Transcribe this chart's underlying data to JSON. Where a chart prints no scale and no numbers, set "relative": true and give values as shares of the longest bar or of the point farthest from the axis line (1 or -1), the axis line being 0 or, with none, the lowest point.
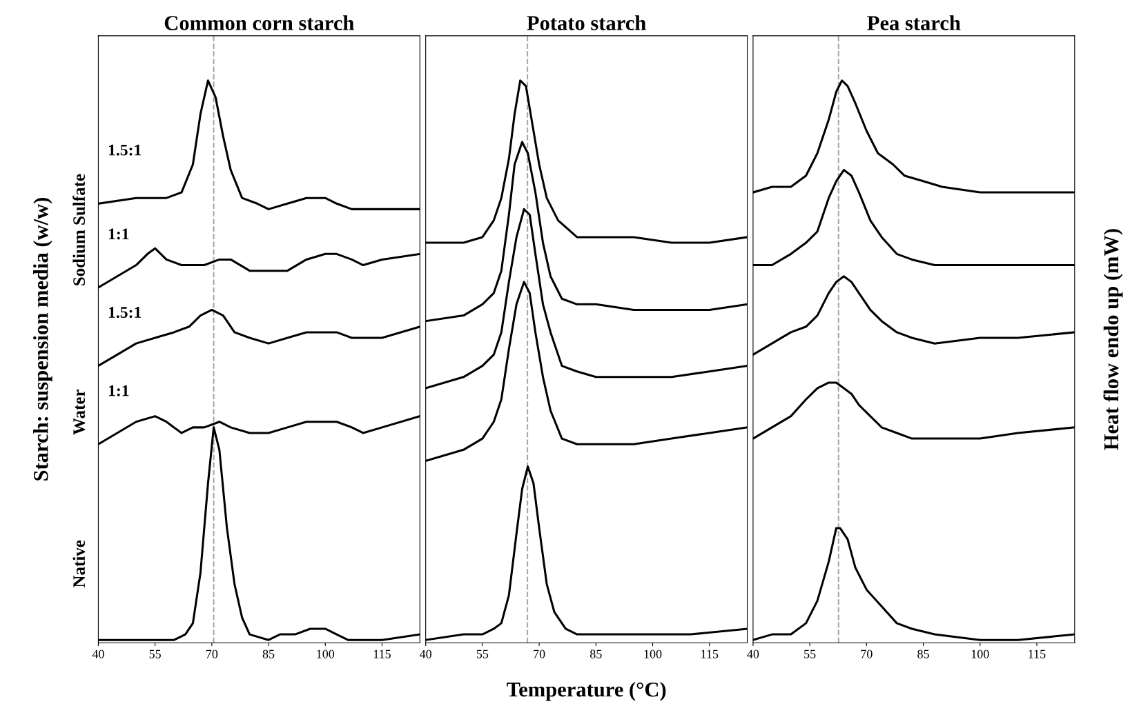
{
  "chart_data": [
    {
      "type": "line",
      "title": "Common corn starch",
      "ylabel": "Starch: suspension media (w/w)",
      "relative": true,
      "xlim": [
        40,
        125
      ],
      "xticks": [
        40,
        55,
        70,
        85,
        100,
        115
      ],
      "tick_labels": "x",
      "grid": false,
      "legend": false,
      "marker": "none",
      "line_style": "solid",
      "annotations": [
        "Sodium Sulfate",
        "Water",
        "Native"
      ],
      "ref_lines": [
        {
          "axis": "x",
          "value": 70.5,
          "color": "#a6a6a6",
          "line_style": "dashed"
        }
      ],
      "series": [
        {
          "name": "1.5:1",
          "color": "#000000",
          "x": [
            40,
            50,
            58,
            62,
            65,
            67,
            69,
            71,
            73,
            75,
            78,
            82,
            85,
            90,
            95,
            100,
            103,
            107,
            110,
            115,
            125
          ],
          "values": [
            0.78,
            0.79,
            0.79,
            0.8,
            0.85,
            0.94,
            1,
            0.97,
            0.9,
            0.84,
            0.79,
            0.78,
            0.77,
            0.78,
            0.79,
            0.79,
            0.78,
            0.77,
            0.77,
            0.77,
            0.77
          ]
        },
        {
          "name": "1:1",
          "color": "#000000",
          "x": [
            40,
            45,
            50,
            53,
            55,
            58,
            62,
            65,
            68,
            72,
            75,
            80,
            85,
            90,
            95,
            100,
            103,
            107,
            110,
            115,
            125
          ],
          "values": [
            0.63,
            0.65,
            0.67,
            0.69,
            0.7,
            0.68,
            0.67,
            0.67,
            0.67,
            0.68,
            0.68,
            0.66,
            0.66,
            0.66,
            0.68,
            0.69,
            0.69,
            0.68,
            0.67,
            0.68,
            0.69
          ]
        },
        {
          "name": "1.5:1",
          "color": "#000000",
          "x": [
            40,
            45,
            50,
            55,
            60,
            64,
            67,
            70,
            73,
            76,
            80,
            85,
            90,
            95,
            100,
            103,
            107,
            110,
            115,
            125
          ],
          "values": [
            0.49,
            0.51,
            0.53,
            0.54,
            0.55,
            0.56,
            0.58,
            0.59,
            0.58,
            0.55,
            0.54,
            0.53,
            0.54,
            0.55,
            0.55,
            0.55,
            0.54,
            0.54,
            0.54,
            0.56
          ]
        },
        {
          "name": "1:1",
          "color": "#000000",
          "x": [
            40,
            45,
            50,
            55,
            58,
            62,
            65,
            68,
            72,
            75,
            80,
            85,
            90,
            95,
            100,
            103,
            107,
            110,
            115,
            125
          ],
          "values": [
            0.35,
            0.37,
            0.39,
            0.4,
            0.39,
            0.37,
            0.38,
            0.38,
            0.39,
            0.38,
            0.37,
            0.37,
            0.38,
            0.39,
            0.39,
            0.39,
            0.38,
            0.37,
            0.38,
            0.4
          ]
        },
        {
          "color": "#000000",
          "x": [
            40,
            45,
            50,
            55,
            60,
            63,
            65,
            67,
            69,
            70.5,
            72,
            74,
            76,
            78,
            80,
            85,
            88,
            92,
            96,
            100,
            103,
            106,
            110,
            115,
            125
          ],
          "values": [
            0,
            0,
            0,
            0,
            0,
            0.01,
            0.03,
            0.12,
            0.28,
            0.38,
            0.34,
            0.2,
            0.1,
            0.04,
            0.01,
            0,
            0.01,
            0.01,
            0.02,
            0.02,
            0.01,
            0,
            0,
            0,
            0.01
          ]
        }
      ]
    },
    {
      "type": "line",
      "title": "Potato starch",
      "xlabel": "Temperature (°C)",
      "relative": true,
      "xlim": [
        40,
        125
      ],
      "xticks": [
        40,
        55,
        70,
        85,
        100,
        115
      ],
      "tick_labels": "x",
      "grid": false,
      "legend": false,
      "marker": "none",
      "line_style": "solid",
      "ref_lines": [
        {
          "axis": "x",
          "value": 66.9,
          "color": "#a6a6a6",
          "line_style": "dashed"
        }
      ],
      "series": [
        {
          "color": "#000000",
          "x": [
            40,
            50,
            55,
            58,
            60,
            62,
            63.5,
            65,
            66.5,
            68,
            70,
            72,
            75,
            80,
            85,
            95,
            105,
            115,
            125
          ],
          "values": [
            0.71,
            0.71,
            0.72,
            0.75,
            0.79,
            0.86,
            0.94,
            1,
            0.99,
            0.93,
            0.85,
            0.79,
            0.75,
            0.72,
            0.72,
            0.72,
            0.71,
            0.71,
            0.72
          ]
        },
        {
          "color": "#000000",
          "x": [
            40,
            50,
            55,
            58,
            60,
            62,
            63.5,
            65.5,
            67,
            69,
            71,
            73,
            76,
            80,
            85,
            95,
            105,
            115,
            125
          ],
          "values": [
            0.57,
            0.58,
            0.6,
            0.62,
            0.66,
            0.76,
            0.85,
            0.89,
            0.87,
            0.8,
            0.71,
            0.65,
            0.61,
            0.6,
            0.6,
            0.59,
            0.59,
            0.59,
            0.6
          ]
        },
        {
          "color": "#000000",
          "x": [
            40,
            50,
            55,
            58,
            60,
            62,
            64,
            66,
            67.5,
            69,
            71,
            73,
            76,
            80,
            85,
            95,
            105,
            115,
            125
          ],
          "values": [
            0.45,
            0.47,
            0.49,
            0.51,
            0.55,
            0.64,
            0.72,
            0.77,
            0.76,
            0.69,
            0.6,
            0.55,
            0.49,
            0.48,
            0.47,
            0.47,
            0.47,
            0.48,
            0.49
          ]
        },
        {
          "color": "#000000",
          "x": [
            40,
            50,
            55,
            58,
            60,
            62,
            64,
            66,
            67.5,
            69,
            71,
            73,
            76,
            80,
            85,
            95,
            105,
            115,
            125
          ],
          "values": [
            0.32,
            0.34,
            0.36,
            0.39,
            0.43,
            0.52,
            0.6,
            0.64,
            0.62,
            0.55,
            0.47,
            0.41,
            0.36,
            0.35,
            0.35,
            0.35,
            0.36,
            0.37,
            0.38
          ]
        },
        {
          "color": "#000000",
          "x": [
            40,
            50,
            55,
            58,
            60,
            62,
            64,
            65.5,
            67,
            68.5,
            70,
            72,
            74,
            77,
            80,
            90,
            100,
            110,
            125
          ],
          "values": [
            0,
            0.01,
            0.01,
            0.02,
            0.03,
            0.08,
            0.19,
            0.27,
            0.31,
            0.28,
            0.2,
            0.1,
            0.05,
            0.02,
            0.01,
            0.01,
            0.01,
            0.01,
            0.02
          ]
        }
      ]
    },
    {
      "type": "line",
      "title": "Pea starch",
      "y2label": "Heat flow endo up (mW)",
      "relative": true,
      "xlim": [
        40,
        125
      ],
      "xticks": [
        40,
        55,
        70,
        85,
        100,
        115
      ],
      "tick_labels": "x",
      "grid": false,
      "legend": false,
      "marker": "none",
      "line_style": "solid",
      "ref_lines": [
        {
          "axis": "x",
          "value": 62.6,
          "color": "#a6a6a6",
          "line_style": "dashed"
        }
      ],
      "series": [
        {
          "color": "#000000",
          "x": [
            40,
            45,
            50,
            54,
            57,
            60,
            62,
            63.5,
            65,
            67,
            70,
            73,
            77,
            80,
            85,
            90,
            100,
            110,
            115,
            125
          ],
          "values": [
            0.8,
            0.81,
            0.81,
            0.83,
            0.87,
            0.93,
            0.98,
            1,
            0.99,
            0.96,
            0.91,
            0.87,
            0.85,
            0.83,
            0.82,
            0.81,
            0.8,
            0.8,
            0.8,
            0.8
          ]
        },
        {
          "color": "#000000",
          "x": [
            40,
            45,
            50,
            54,
            57,
            60,
            62,
            64,
            66,
            68,
            71,
            74,
            78,
            82,
            88,
            100,
            110,
            125
          ],
          "values": [
            0.67,
            0.67,
            0.69,
            0.71,
            0.73,
            0.79,
            0.82,
            0.84,
            0.83,
            0.8,
            0.75,
            0.72,
            0.69,
            0.68,
            0.67,
            0.67,
            0.67,
            0.67
          ]
        },
        {
          "color": "#000000",
          "x": [
            40,
            45,
            50,
            54,
            57,
            60,
            62,
            64,
            66,
            68,
            71,
            74,
            78,
            82,
            88,
            100,
            110,
            125
          ],
          "values": [
            0.51,
            0.53,
            0.55,
            0.56,
            0.58,
            0.62,
            0.64,
            0.65,
            0.64,
            0.62,
            0.59,
            0.57,
            0.55,
            0.54,
            0.53,
            0.54,
            0.54,
            0.55
          ]
        },
        {
          "color": "#000000",
          "x": [
            40,
            45,
            50,
            54,
            57,
            60,
            62,
            64,
            66,
            68,
            71,
            74,
            78,
            82,
            88,
            100,
            110,
            125
          ],
          "values": [
            0.36,
            0.38,
            0.4,
            0.43,
            0.45,
            0.46,
            0.46,
            0.45,
            0.44,
            0.42,
            0.4,
            0.38,
            0.37,
            0.36,
            0.36,
            0.36,
            0.37,
            0.38
          ]
        },
        {
          "color": "#000000",
          "x": [
            40,
            45,
            50,
            54,
            57,
            60,
            62,
            63,
            65,
            67,
            70,
            74,
            78,
            82,
            88,
            100,
            110,
            125
          ],
          "values": [
            0,
            0.01,
            0.01,
            0.03,
            0.07,
            0.14,
            0.2,
            0.2,
            0.18,
            0.13,
            0.09,
            0.06,
            0.03,
            0.02,
            0.01,
            0,
            0,
            0.01
          ]
        }
      ]
    }
  ]
}
